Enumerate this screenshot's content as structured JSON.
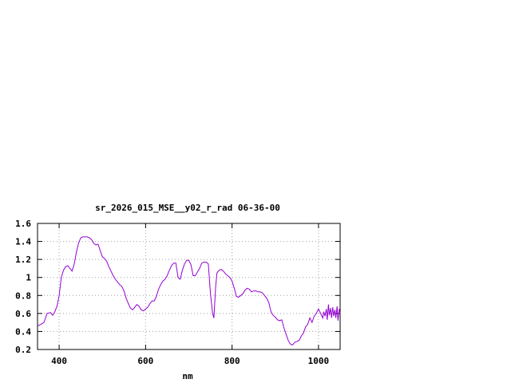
{
  "chart_data": {
    "type": "line",
    "title": "sr_2026_015_MSE__y02_r_rad 06-36-00",
    "xlabel": "nm",
    "ylabel": "",
    "xlim": [
      350,
      1050
    ],
    "ylim": [
      0.2,
      1.6
    ],
    "xticks": [
      400,
      600,
      800,
      1000
    ],
    "yticks": [
      0.2,
      0.4,
      0.6,
      0.8,
      1.0,
      1.2,
      1.4,
      1.6
    ],
    "xtick_labels": [
      "400",
      "600",
      "800",
      "1000"
    ],
    "ytick_labels": [
      "0.2",
      "0.4",
      "0.6",
      "0.8",
      "1",
      "1.2",
      "1.4",
      "1.6"
    ],
    "grid": true,
    "line_color": "#9400d3",
    "series": [
      {
        "x": [
          350,
          358,
          365,
          372,
          380,
          385,
          390,
          395,
          400,
          405,
          410,
          415,
          420,
          425,
          430,
          435,
          440,
          445,
          450,
          455,
          460,
          465,
          470,
          475,
          480,
          485,
          490,
          495,
          500,
          505,
          510,
          515,
          520,
          525,
          530,
          535,
          540,
          545,
          550,
          555,
          560,
          565,
          570,
          575,
          580,
          585,
          590,
          595,
          600,
          605,
          610,
          615,
          620,
          625,
          630,
          635,
          640,
          645,
          650,
          655,
          660,
          665,
          670,
          675,
          680,
          685,
          690,
          695,
          700,
          705,
          710,
          715,
          720,
          725,
          730,
          735,
          740,
          745,
          750,
          755,
          758,
          762,
          765,
          770,
          775,
          780,
          785,
          790,
          795,
          800,
          805,
          810,
          815,
          820,
          825,
          830,
          835,
          840,
          845,
          850,
          855,
          860,
          865,
          870,
          875,
          880,
          885,
          890,
          895,
          900,
          905,
          910,
          915,
          920,
          925,
          930,
          935,
          940,
          945,
          950,
          955,
          960,
          965,
          970,
          975,
          980,
          985,
          990,
          995,
          1000,
          1005,
          1010,
          1012,
          1015,
          1018,
          1020,
          1023,
          1025,
          1028,
          1030,
          1033,
          1035,
          1038,
          1040,
          1043,
          1045,
          1048,
          1050
        ],
        "y": [
          0.46,
          0.48,
          0.5,
          0.6,
          0.61,
          0.58,
          0.62,
          0.68,
          0.8,
          1.0,
          1.08,
          1.12,
          1.13,
          1.1,
          1.07,
          1.15,
          1.28,
          1.38,
          1.44,
          1.45,
          1.45,
          1.45,
          1.44,
          1.42,
          1.38,
          1.36,
          1.37,
          1.3,
          1.23,
          1.21,
          1.18,
          1.12,
          1.07,
          1.02,
          0.98,
          0.95,
          0.92,
          0.9,
          0.85,
          0.77,
          0.71,
          0.66,
          0.64,
          0.67,
          0.7,
          0.68,
          0.64,
          0.63,
          0.65,
          0.67,
          0.71,
          0.74,
          0.74,
          0.79,
          0.87,
          0.92,
          0.96,
          0.98,
          1.02,
          1.08,
          1.13,
          1.16,
          1.16,
          1.0,
          0.98,
          1.08,
          1.15,
          1.19,
          1.19,
          1.14,
          1.02,
          1.02,
          1.06,
          1.1,
          1.16,
          1.17,
          1.17,
          1.15,
          0.82,
          0.6,
          0.55,
          0.9,
          1.05,
          1.08,
          1.09,
          1.07,
          1.04,
          1.02,
          1.0,
          0.96,
          0.88,
          0.79,
          0.78,
          0.8,
          0.82,
          0.86,
          0.88,
          0.87,
          0.84,
          0.85,
          0.85,
          0.84,
          0.84,
          0.83,
          0.8,
          0.77,
          0.72,
          0.62,
          0.58,
          0.56,
          0.53,
          0.52,
          0.53,
          0.44,
          0.37,
          0.3,
          0.26,
          0.25,
          0.28,
          0.29,
          0.3,
          0.35,
          0.38,
          0.45,
          0.48,
          0.55,
          0.5,
          0.57,
          0.6,
          0.65,
          0.6,
          0.55,
          0.62,
          0.57,
          0.65,
          0.53,
          0.7,
          0.58,
          0.66,
          0.55,
          0.67,
          0.57,
          0.64,
          0.55,
          0.68,
          0.52,
          0.65,
          0.6
        ]
      }
    ]
  }
}
